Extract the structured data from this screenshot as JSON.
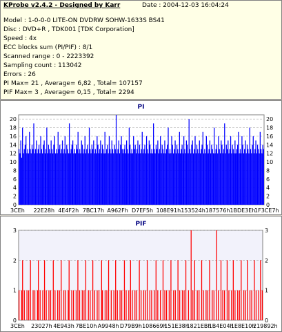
{
  "header": {
    "title": "KProbe v2.4.2 - Designed by Karr",
    "date": "Date : 2004-12-03 16:04:24"
  },
  "info": [
    "Model : 1-0-0-0 LITE-ON DVDRW SOHW-1633S BS41",
    "Disc : DVD+R , TDK001 [TDK Corporation]",
    "Speed : 4x",
    "ECC blocks sum (PI/PIF) : 8/1",
    "Scanned range : 0 - 2223392",
    "Sampling count : 113042",
    "Errors : 26",
    "PI Max= 21 , Average= 6,82 , Total= 107157",
    "PIF Max= 3 , Average= 0,15 , Total= 2294"
  ],
  "colors": {
    "pi_bars": "#0000ff",
    "pif_bars": "#ff0000",
    "title": "#000080",
    "info_bg": "#ffffe6"
  },
  "chart_data": [
    {
      "type": "bar",
      "title": "PI",
      "ylim": [
        0,
        21
      ],
      "yticks": [
        0,
        2,
        4,
        6,
        8,
        10,
        12,
        14,
        16,
        18,
        20
      ],
      "xticks": [
        "3CEh",
        "22E28h",
        "4E4F2h",
        "7BC17h",
        "A962Fh",
        "D7EF5h",
        "108E91h",
        "153524h",
        "187576h",
        "1BDE3Eh",
        "1F3CE7h"
      ],
      "grid": true,
      "legend": "none",
      "summary": {
        "max": 21,
        "average": 6.82,
        "total": 107157
      },
      "values": [
        13,
        12,
        15,
        11,
        18,
        12,
        13,
        14,
        16,
        12,
        13,
        12,
        17,
        13,
        12,
        14,
        13,
        19,
        12,
        13,
        15,
        12,
        13,
        14,
        12,
        16,
        13,
        12,
        14,
        15,
        12,
        13,
        18,
        12,
        14,
        13,
        12,
        15,
        13,
        12,
        14,
        16,
        12,
        13,
        12,
        17,
        13,
        14,
        12,
        13,
        15,
        12,
        13,
        16,
        12,
        14,
        13,
        12,
        19,
        12,
        13,
        14,
        15,
        12,
        13,
        12,
        14,
        13,
        17,
        12,
        13,
        12,
        15,
        14,
        12,
        13,
        16,
        12,
        13,
        14,
        12,
        18,
        13,
        12,
        14,
        13,
        15,
        12,
        13,
        12,
        16,
        14,
        12,
        13,
        15,
        12,
        14,
        13,
        12,
        17,
        12,
        13,
        14,
        12,
        16,
        13,
        12,
        15,
        13,
        12,
        14,
        13,
        21,
        12,
        13,
        15,
        12,
        14,
        16,
        13,
        12,
        13,
        14,
        12,
        15,
        13,
        12,
        18,
        14,
        12,
        13,
        12,
        16,
        13,
        14,
        12,
        13,
        15,
        12,
        14,
        12,
        13,
        17,
        12,
        13,
        14,
        12,
        16,
        13,
        12,
        15,
        14,
        12,
        13,
        12,
        19,
        13,
        12,
        14,
        13,
        15,
        12,
        13,
        16,
        12,
        14,
        13,
        12,
        15,
        12,
        13,
        14,
        18,
        12,
        13,
        12,
        16,
        14,
        12,
        13,
        15,
        12,
        14,
        13,
        12,
        17,
        12,
        13,
        14,
        12,
        16,
        13,
        12,
        15,
        14,
        12,
        20,
        13,
        12,
        14,
        15,
        12,
        13,
        16,
        12,
        14,
        13,
        12,
        15,
        12,
        13,
        14,
        17,
        12,
        13,
        12,
        16,
        14,
        12,
        13,
        15,
        12,
        14,
        13,
        12,
        18,
        12,
        13,
        14,
        12,
        16,
        13,
        12,
        15,
        14,
        12,
        13,
        19,
        12,
        14,
        13,
        15,
        12,
        13,
        16,
        12,
        14,
        13,
        12,
        15,
        12,
        13,
        14,
        17,
        12,
        13,
        12,
        16,
        14,
        12,
        13,
        15,
        12,
        14,
        13,
        12,
        18,
        13,
        12,
        14,
        16,
        12,
        13,
        15,
        12,
        14,
        13,
        12,
        17,
        13,
        12,
        14,
        13
      ]
    },
    {
      "type": "bar",
      "title": "PIF",
      "ylim": [
        0,
        3
      ],
      "yticks": [
        0,
        1,
        2,
        3
      ],
      "xticks": [
        "3CEh",
        "23027h",
        "4E943h",
        "7BE10h",
        "A9948h",
        "D79B9h",
        "108669h",
        "151E38h",
        "1821EBh",
        "1B4E04h",
        "1E8E10h",
        "219892h"
      ],
      "grid": true,
      "legend": "none",
      "summary": {
        "max": 3,
        "average": 0.15,
        "total": 2294
      },
      "values": [
        1,
        0,
        0,
        1,
        2,
        0,
        1,
        0,
        0,
        1,
        0,
        1,
        0,
        2,
        0,
        0,
        1,
        0,
        1,
        0,
        0,
        1,
        2,
        0,
        1,
        0,
        0,
        1,
        0,
        2,
        0,
        1,
        0,
        0,
        1,
        0,
        1,
        0,
        0,
        2,
        0,
        1,
        0,
        0,
        1,
        0,
        1,
        0,
        2,
        0,
        0,
        1,
        0,
        1,
        0,
        0,
        1,
        2,
        0,
        0,
        1,
        0,
        1,
        0,
        0,
        1,
        0,
        2,
        0,
        1,
        0,
        0,
        1,
        0,
        1,
        0,
        2,
        0,
        0,
        1,
        0,
        1,
        0,
        0,
        2,
        0,
        1,
        0,
        0,
        1,
        0,
        1,
        0,
        0,
        2,
        1,
        0,
        0,
        1,
        0,
        1,
        0,
        2,
        0,
        0,
        1,
        0,
        0,
        1,
        0,
        2,
        0,
        1,
        0,
        0,
        1,
        0,
        1,
        0,
        0,
        2,
        0,
        1,
        0,
        0,
        1,
        0,
        2,
        0,
        1,
        0,
        0,
        1,
        0,
        1,
        0,
        0,
        2,
        0,
        1,
        0,
        0,
        1,
        0,
        1,
        0,
        2,
        0,
        0,
        1,
        0,
        1,
        0,
        0,
        1,
        0,
        2,
        0,
        1,
        0,
        0,
        1,
        0,
        0,
        2,
        0,
        1,
        0,
        1,
        0,
        0,
        1,
        0,
        2,
        0,
        0,
        1,
        0,
        1,
        0,
        0,
        2,
        0,
        1,
        0,
        0,
        1,
        0,
        1,
        0,
        2,
        0,
        0,
        1,
        0,
        0,
        3,
        0,
        1,
        0,
        2,
        0,
        0,
        1,
        0,
        1,
        0,
        0,
        2,
        0,
        1,
        0,
        0,
        1,
        0,
        1,
        0,
        2,
        0,
        0,
        1,
        0,
        1,
        0,
        0,
        3,
        0,
        1,
        0,
        0,
        2,
        0,
        1,
        0,
        1,
        0,
        0,
        2,
        0,
        1,
        0,
        0,
        1,
        0,
        2,
        0,
        1,
        0,
        0,
        1,
        0,
        1,
        0,
        2,
        0,
        0,
        1,
        0,
        1,
        0,
        2,
        0,
        0,
        1,
        0,
        1,
        0,
        0,
        2,
        0,
        1,
        0,
        0,
        1,
        0,
        2,
        0,
        1
      ]
    }
  ]
}
